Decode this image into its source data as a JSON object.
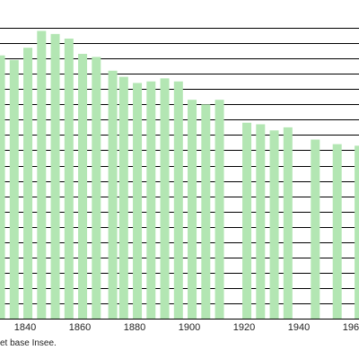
{
  "chart_data": {
    "type": "bar",
    "bar_color": "#b3e6b3",
    "grid_color": "#000000",
    "grid": true,
    "ylim": [
      0,
      20
    ],
    "gridlines": [
      0,
      1,
      2,
      3,
      4,
      5,
      6,
      7,
      8,
      9,
      10,
      11,
      12,
      13,
      14,
      15,
      16,
      17,
      18,
      19
    ],
    "xlim": [
      1836,
      1966
    ],
    "xticks": [
      1840,
      1860,
      1880,
      1900,
      1920,
      1940,
      1960
    ],
    "xtick_labels": [
      "1840",
      "1860",
      "1880",
      "1900",
      "1920",
      "1940",
      "1960"
    ],
    "bars": [
      {
        "x": 1831,
        "y": 17.2
      },
      {
        "x": 1836,
        "y": 16.9
      },
      {
        "x": 1841,
        "y": 17.7
      },
      {
        "x": 1846,
        "y": 18.8
      },
      {
        "x": 1851,
        "y": 18.6
      },
      {
        "x": 1856,
        "y": 18.3
      },
      {
        "x": 1861,
        "y": 17.3
      },
      {
        "x": 1866,
        "y": 17.1
      },
      {
        "x": 1872,
        "y": 16.2
      },
      {
        "x": 1876,
        "y": 15.8
      },
      {
        "x": 1881,
        "y": 15.4
      },
      {
        "x": 1886,
        "y": 15.5
      },
      {
        "x": 1891,
        "y": 15.7
      },
      {
        "x": 1896,
        "y": 15.5
      },
      {
        "x": 1901,
        "y": 14.3
      },
      {
        "x": 1906,
        "y": 14.0
      },
      {
        "x": 1911,
        "y": 14.3
      },
      {
        "x": 1921,
        "y": 12.8
      },
      {
        "x": 1926,
        "y": 12.7
      },
      {
        "x": 1931,
        "y": 12.3
      },
      {
        "x": 1936,
        "y": 12.5
      },
      {
        "x": 1946,
        "y": 11.7
      },
      {
        "x": 1954,
        "y": 11.4
      },
      {
        "x": 1962,
        "y": 11.3
      }
    ]
  },
  "footer": {
    "source_text": "et base Insee."
  }
}
